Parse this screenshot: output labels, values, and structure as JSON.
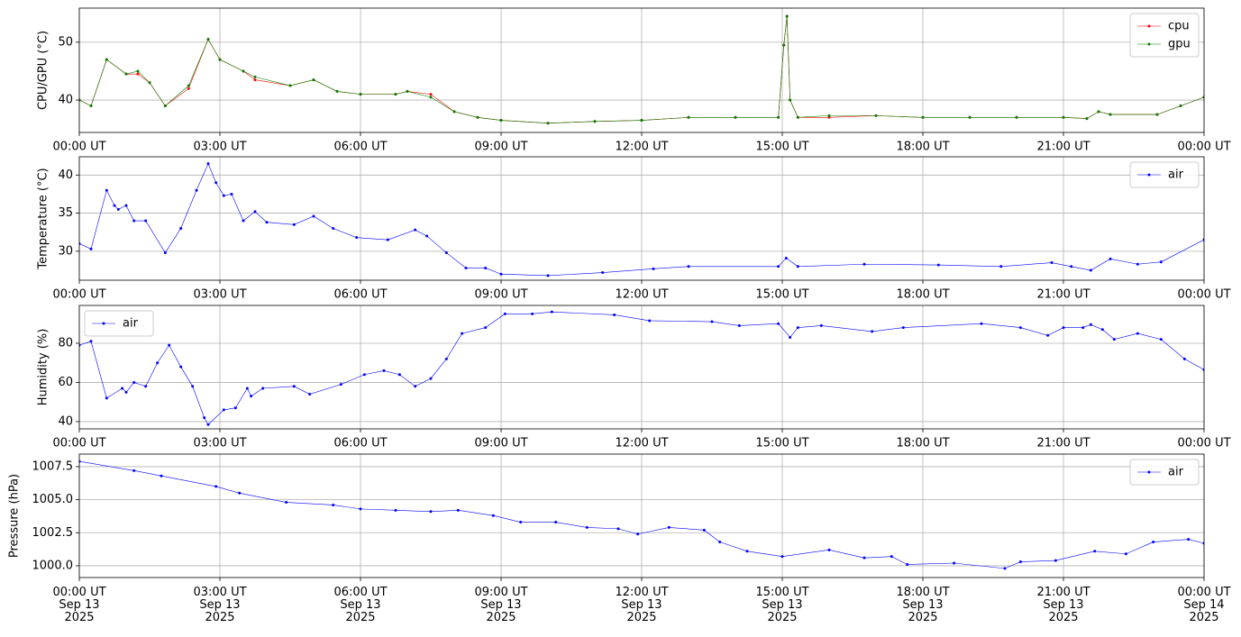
{
  "chart_data": [
    {
      "type": "line",
      "ylabel": "CPU/GPU (°C)",
      "grid": true,
      "legend": "upper right",
      "x": [
        "2025-09-13 00:00",
        "2025-09-13 00:15",
        "2025-09-13 00:35",
        "2025-09-13 01:00",
        "2025-09-13 01:15",
        "2025-09-13 01:30",
        "2025-09-13 01:50",
        "2025-09-13 02:20",
        "2025-09-13 02:45",
        "2025-09-13 03:00",
        "2025-09-13 03:30",
        "2025-09-13 03:45",
        "2025-09-13 04:30",
        "2025-09-13 05:00",
        "2025-09-13 05:30",
        "2025-09-13 06:00",
        "2025-09-13 06:45",
        "2025-09-13 07:00",
        "2025-09-13 07:30",
        "2025-09-13 08:00",
        "2025-09-13 08:30",
        "2025-09-13 09:00",
        "2025-09-13 10:00",
        "2025-09-13 11:00",
        "2025-09-13 12:00",
        "2025-09-13 13:00",
        "2025-09-13 14:00",
        "2025-09-13 14:55",
        "2025-09-13 15:02",
        "2025-09-13 15:06",
        "2025-09-13 15:10",
        "2025-09-13 15:20",
        "2025-09-13 16:00",
        "2025-09-13 17:00",
        "2025-09-13 18:00",
        "2025-09-13 19:00",
        "2025-09-13 20:00",
        "2025-09-13 21:00",
        "2025-09-13 21:30",
        "2025-09-13 21:45",
        "2025-09-13 22:00",
        "2025-09-13 23:00",
        "2025-09-13 23:30",
        "2025-09-14 00:00"
      ],
      "series": [
        {
          "name": "cpu",
          "color": "#ff0000",
          "values": [
            40,
            39,
            47,
            44.5,
            44.5,
            43,
            39,
            42,
            50.5,
            47,
            45,
            43.5,
            42.5,
            43.5,
            41.5,
            41,
            41,
            41.5,
            41,
            38,
            37,
            36.5,
            36,
            36.3,
            36.5,
            37,
            37,
            37,
            49.5,
            54.5,
            40,
            37,
            37,
            37.3,
            37,
            37,
            37,
            37,
            36.8,
            38,
            37.5,
            37.5,
            39,
            40.5
          ]
        },
        {
          "name": "gpu",
          "color": "#008000",
          "values": [
            40,
            39,
            47,
            44.5,
            45,
            43,
            39,
            42.5,
            50.5,
            47,
            45,
            44,
            42.5,
            43.5,
            41.5,
            41,
            41,
            41.5,
            40.5,
            38,
            37,
            36.5,
            36,
            36.3,
            36.5,
            37,
            37,
            37,
            49.5,
            54.5,
            40,
            37,
            37.3,
            37.3,
            37,
            37,
            37,
            37,
            36.8,
            38,
            37.5,
            37.5,
            39,
            40.5
          ]
        }
      ],
      "xlim": [
        "2025-09-13 00:00",
        "2025-09-14 00:00"
      ],
      "xticks": [
        {
          "value": "2025-09-13 00:00",
          "label": "00:00 UT"
        },
        {
          "value": "2025-09-13 03:00",
          "label": "03:00 UT"
        },
        {
          "value": "2025-09-13 06:00",
          "label": "06:00 UT"
        },
        {
          "value": "2025-09-13 09:00",
          "label": "09:00 UT"
        },
        {
          "value": "2025-09-13 12:00",
          "label": "12:00 UT"
        },
        {
          "value": "2025-09-13 15:00",
          "label": "15:00 UT"
        },
        {
          "value": "2025-09-13 18:00",
          "label": "18:00 UT"
        },
        {
          "value": "2025-09-13 21:00",
          "label": "21:00 UT"
        },
        {
          "value": "2025-09-14 00:00",
          "label": "00:00 UT"
        }
      ],
      "ylim": [
        34.4,
        55.9
      ],
      "yticks": [
        40,
        50
      ]
    },
    {
      "type": "line",
      "ylabel": "Temperature (°C)",
      "grid": true,
      "legend": "upper right",
      "x": [
        "2025-09-13 00:00",
        "2025-09-13 00:15",
        "2025-09-13 00:35",
        "2025-09-13 00:45",
        "2025-09-13 00:50",
        "2025-09-13 01:00",
        "2025-09-13 01:10",
        "2025-09-13 01:25",
        "2025-09-13 01:50",
        "2025-09-13 02:10",
        "2025-09-13 02:30",
        "2025-09-13 02:45",
        "2025-09-13 02:55",
        "2025-09-13 03:05",
        "2025-09-13 03:15",
        "2025-09-13 03:30",
        "2025-09-13 03:45",
        "2025-09-13 04:00",
        "2025-09-13 04:35",
        "2025-09-13 05:00",
        "2025-09-13 05:25",
        "2025-09-13 05:55",
        "2025-09-13 06:35",
        "2025-09-13 07:10",
        "2025-09-13 07:25",
        "2025-09-13 07:50",
        "2025-09-13 08:15",
        "2025-09-13 08:40",
        "2025-09-13 09:00",
        "2025-09-13 10:00",
        "2025-09-13 11:10",
        "2025-09-13 12:15",
        "2025-09-13 13:00",
        "2025-09-13 14:55",
        "2025-09-13 15:05",
        "2025-09-13 15:20",
        "2025-09-13 16:45",
        "2025-09-13 18:20",
        "2025-09-13 19:40",
        "2025-09-13 20:45",
        "2025-09-13 21:10",
        "2025-09-13 21:35",
        "2025-09-13 22:00",
        "2025-09-13 22:35",
        "2025-09-13 23:05",
        "2025-09-14 00:00"
      ],
      "series": [
        {
          "name": "air",
          "color": "#0000ff",
          "values": [
            31,
            30.3,
            38,
            36,
            35.5,
            36,
            34,
            34,
            29.8,
            33,
            38,
            41.5,
            39,
            37.3,
            37.5,
            34,
            35.2,
            33.8,
            33.5,
            34.6,
            33,
            31.8,
            31.5,
            32.8,
            32,
            29.8,
            27.8,
            27.8,
            27,
            26.8,
            27.2,
            27.7,
            28,
            28,
            29.1,
            28,
            28.3,
            28.2,
            28,
            28.5,
            28,
            27.5,
            29,
            28.3,
            28.6,
            31.5
          ]
        }
      ],
      "xlim": [
        "2025-09-13 00:00",
        "2025-09-14 00:00"
      ],
      "xticks": [
        {
          "value": "2025-09-13 00:00",
          "label": "00:00 UT"
        },
        {
          "value": "2025-09-13 03:00",
          "label": "03:00 UT"
        },
        {
          "value": "2025-09-13 06:00",
          "label": "06:00 UT"
        },
        {
          "value": "2025-09-13 09:00",
          "label": "09:00 UT"
        },
        {
          "value": "2025-09-13 12:00",
          "label": "12:00 UT"
        },
        {
          "value": "2025-09-13 15:00",
          "label": "15:00 UT"
        },
        {
          "value": "2025-09-13 18:00",
          "label": "18:00 UT"
        },
        {
          "value": "2025-09-13 21:00",
          "label": "21:00 UT"
        },
        {
          "value": "2025-09-14 00:00",
          "label": "00:00 UT"
        }
      ],
      "ylim": [
        26.2,
        42.4
      ],
      "yticks": [
        30,
        35,
        40
      ]
    },
    {
      "type": "line",
      "ylabel": "Humidity (%)",
      "grid": true,
      "legend": "upper left",
      "x": [
        "2025-09-13 00:00",
        "2025-09-13 00:15",
        "2025-09-13 00:35",
        "2025-09-13 00:55",
        "2025-09-13 01:00",
        "2025-09-13 01:10",
        "2025-09-13 01:25",
        "2025-09-13 01:40",
        "2025-09-13 01:55",
        "2025-09-13 02:10",
        "2025-09-13 02:25",
        "2025-09-13 02:40",
        "2025-09-13 02:45",
        "2025-09-13 03:05",
        "2025-09-13 03:20",
        "2025-09-13 03:35",
        "2025-09-13 03:40",
        "2025-09-13 03:55",
        "2025-09-13 04:35",
        "2025-09-13 04:55",
        "2025-09-13 05:35",
        "2025-09-13 06:05",
        "2025-09-13 06:30",
        "2025-09-13 06:50",
        "2025-09-13 07:10",
        "2025-09-13 07:30",
        "2025-09-13 07:50",
        "2025-09-13 08:10",
        "2025-09-13 08:40",
        "2025-09-13 09:05",
        "2025-09-13 09:40",
        "2025-09-13 10:05",
        "2025-09-13 11:25",
        "2025-09-13 12:10",
        "2025-09-13 13:30",
        "2025-09-13 14:05",
        "2025-09-13 14:55",
        "2025-09-13 15:10",
        "2025-09-13 15:20",
        "2025-09-13 15:50",
        "2025-09-13 16:55",
        "2025-09-13 17:35",
        "2025-09-13 19:15",
        "2025-09-13 20:05",
        "2025-09-13 20:40",
        "2025-09-13 21:00",
        "2025-09-13 21:25",
        "2025-09-13 21:35",
        "2025-09-13 21:50",
        "2025-09-13 22:05",
        "2025-09-13 22:35",
        "2025-09-13 23:05",
        "2025-09-13 23:35",
        "2025-09-14 00:00"
      ],
      "series": [
        {
          "name": "air",
          "color": "#0000ff",
          "values": [
            79,
            81,
            52,
            57,
            55,
            60,
            58,
            70,
            79,
            68,
            58,
            42,
            38.5,
            46,
            47,
            57,
            53,
            57,
            58,
            54,
            59,
            64,
            66,
            64,
            58,
            62,
            72,
            85,
            88,
            95,
            95,
            96,
            94.5,
            91.5,
            91,
            89,
            90,
            83,
            88,
            89,
            86,
            88,
            90,
            88,
            84,
            88,
            88,
            89.5,
            87,
            82,
            85,
            82,
            72,
            66.5
          ]
        }
      ],
      "xlim": [
        "2025-09-13 00:00",
        "2025-09-14 00:00"
      ],
      "xticks": [
        {
          "value": "2025-09-13 00:00",
          "label": "00:00 UT"
        },
        {
          "value": "2025-09-13 03:00",
          "label": "03:00 UT"
        },
        {
          "value": "2025-09-13 06:00",
          "label": "06:00 UT"
        },
        {
          "value": "2025-09-13 09:00",
          "label": "09:00 UT"
        },
        {
          "value": "2025-09-13 12:00",
          "label": "12:00 UT"
        },
        {
          "value": "2025-09-13 15:00",
          "label": "15:00 UT"
        },
        {
          "value": "2025-09-13 18:00",
          "label": "18:00 UT"
        },
        {
          "value": "2025-09-13 21:00",
          "label": "21:00 UT"
        },
        {
          "value": "2025-09-14 00:00",
          "label": "00:00 UT"
        }
      ],
      "ylim": [
        36.3,
        99.3
      ],
      "yticks": [
        40,
        60,
        80
      ]
    },
    {
      "type": "line",
      "ylabel": "Pressure (hPa)",
      "grid": true,
      "legend": "upper right",
      "x": [
        "2025-09-13 00:00",
        "2025-09-13 01:10",
        "2025-09-13 01:45",
        "2025-09-13 02:55",
        "2025-09-13 03:25",
        "2025-09-13 04:25",
        "2025-09-13 05:25",
        "2025-09-13 06:00",
        "2025-09-13 06:45",
        "2025-09-13 07:30",
        "2025-09-13 08:05",
        "2025-09-13 08:50",
        "2025-09-13 09:25",
        "2025-09-13 10:10",
        "2025-09-13 10:50",
        "2025-09-13 11:30",
        "2025-09-13 11:55",
        "2025-09-13 12:35",
        "2025-09-13 13:20",
        "2025-09-13 13:40",
        "2025-09-13 14:15",
        "2025-09-13 15:00",
        "2025-09-13 16:00",
        "2025-09-13 16:45",
        "2025-09-13 17:20",
        "2025-09-13 17:40",
        "2025-09-13 18:40",
        "2025-09-13 19:45",
        "2025-09-13 20:05",
        "2025-09-13 20:50",
        "2025-09-13 21:40",
        "2025-09-13 22:20",
        "2025-09-13 22:55",
        "2025-09-13 23:40",
        "2025-09-14 00:00"
      ],
      "series": [
        {
          "name": "air",
          "color": "#0000ff",
          "values": [
            1007.9,
            1007.2,
            1006.8,
            1006,
            1005.5,
            1004.8,
            1004.6,
            1004.3,
            1004.2,
            1004.1,
            1004.2,
            1003.8,
            1003.3,
            1003.3,
            1002.9,
            1002.8,
            1002.4,
            1002.9,
            1002.7,
            1001.8,
            1001.1,
            1000.7,
            1001.2,
            1000.6,
            1000.7,
            1000.1,
            1000.2,
            999.8,
            1000.3,
            1000.4,
            1001.1,
            1000.9,
            1001.8,
            1002,
            1001.7
          ]
        }
      ],
      "xlim": [
        "2025-09-13 00:00",
        "2025-09-14 00:00"
      ],
      "xticks": [
        {
          "value": "2025-09-13 00:00",
          "label": "00:00 UT\nSep 13\n2025"
        },
        {
          "value": "2025-09-13 03:00",
          "label": "03:00 UT\nSep 13\n2025"
        },
        {
          "value": "2025-09-13 06:00",
          "label": "06:00 UT\nSep 13\n2025"
        },
        {
          "value": "2025-09-13 09:00",
          "label": "09:00 UT\nSep 13\n2025"
        },
        {
          "value": "2025-09-13 12:00",
          "label": "12:00 UT\nSep 13\n2025"
        },
        {
          "value": "2025-09-13 15:00",
          "label": "15:00 UT\nSep 13\n2025"
        },
        {
          "value": "2025-09-13 18:00",
          "label": "18:00 UT\nSep 13\n2025"
        },
        {
          "value": "2025-09-13 21:00",
          "label": "21:00 UT\nSep 13\n2025"
        },
        {
          "value": "2025-09-14 00:00",
          "label": "00:00 UT\nSep 14\n2025"
        }
      ],
      "ylim": [
        999.11,
        1008.45
      ],
      "yticks": [
        {
          "value": 1000,
          "label": "1000.0"
        },
        {
          "value": 1002.5,
          "label": "1002.5"
        },
        {
          "value": 1005,
          "label": "1005.0"
        },
        {
          "value": 1007.5,
          "label": "1007.5"
        }
      ]
    }
  ]
}
